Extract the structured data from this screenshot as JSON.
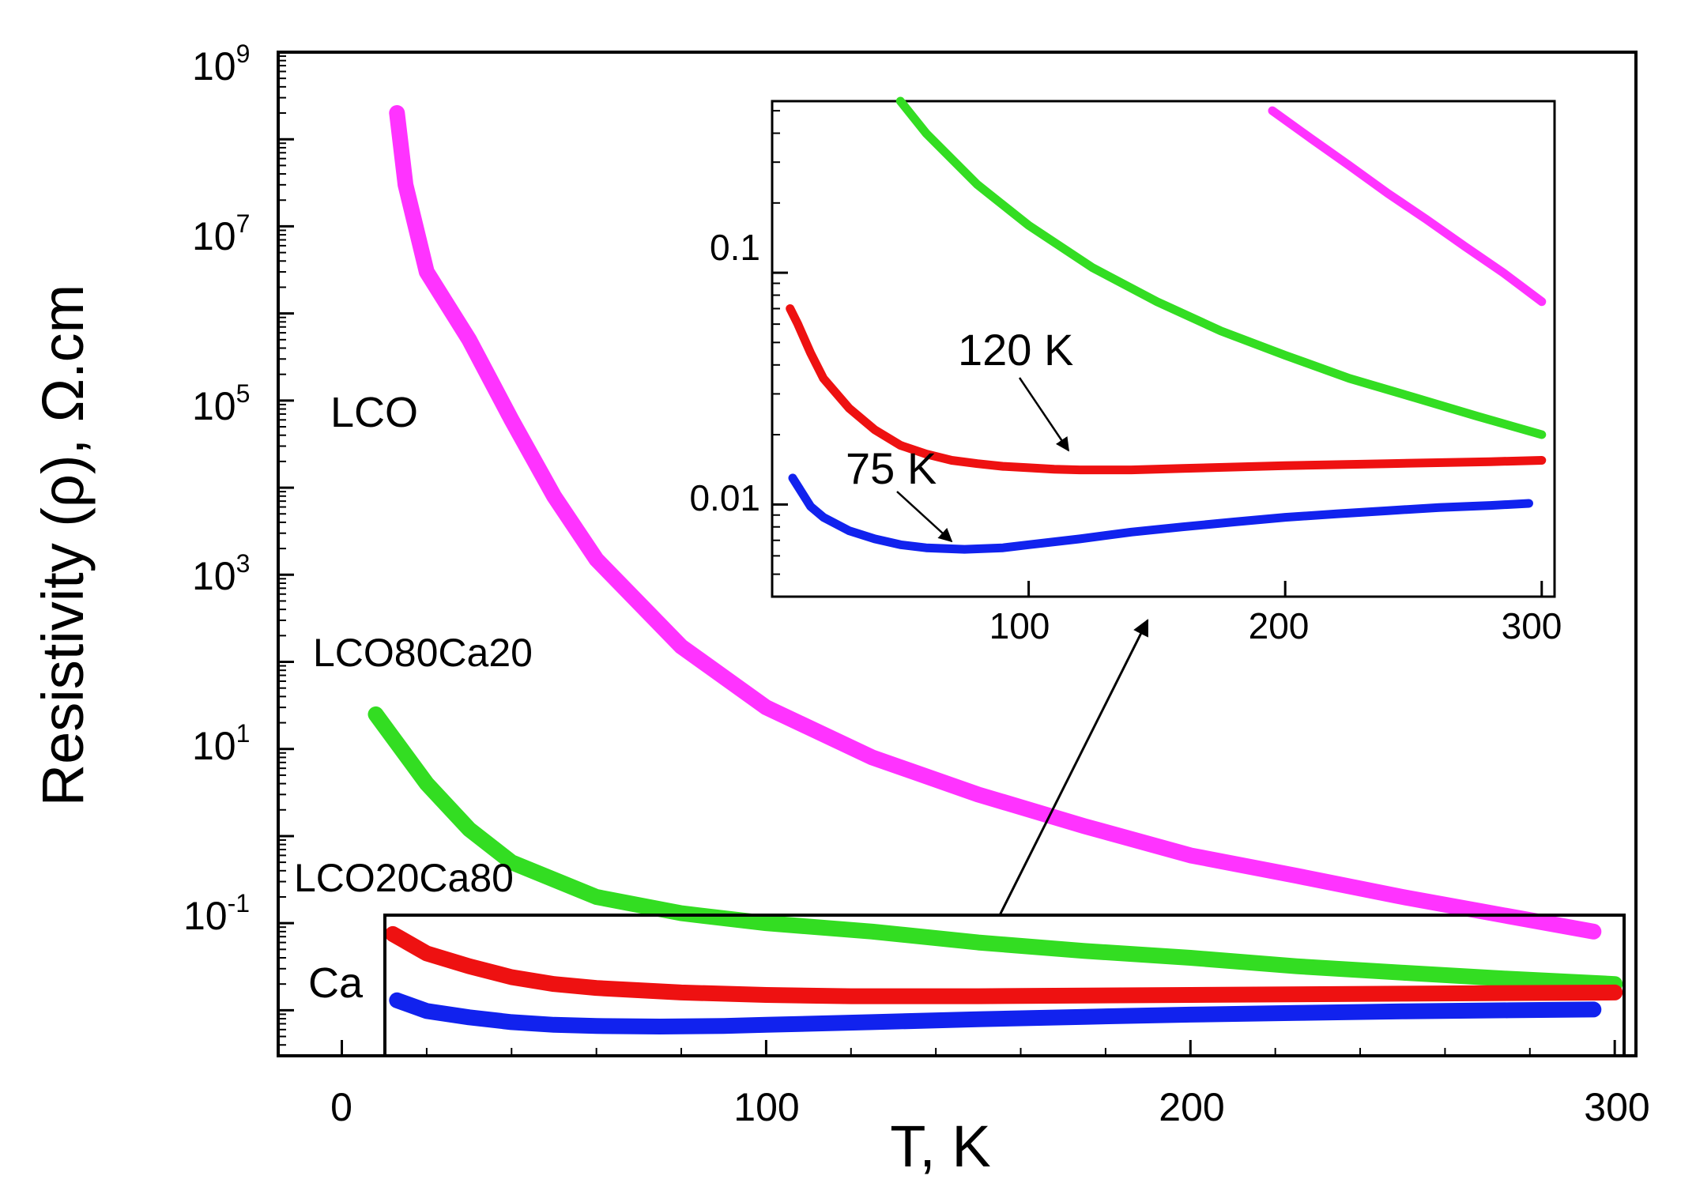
{
  "chart_data": [
    {
      "name": "main",
      "type": "scatter",
      "xlabel": "T, K",
      "ylabel": "Resistivity (ρ), Ω.cm",
      "yscale": "log",
      "xlim": [
        -15,
        305
      ],
      "ylim": [
        0.003,
        1000000000
      ],
      "xticks": [
        0,
        100,
        200,
        300
      ],
      "xtick_labels": [
        "0",
        "100",
        "200",
        "300"
      ],
      "yticks": [
        0.1,
        10,
        1000,
        100000,
        10000000,
        1000000000
      ],
      "ytick_labels": [
        {
          "base": "10",
          "exp": "-1"
        },
        {
          "base": "10",
          "exp": "1"
        },
        {
          "base": "10",
          "exp": "3"
        },
        {
          "base": "10",
          "exp": "5"
        },
        {
          "base": "10",
          "exp": "7"
        },
        {
          "base": "10",
          "exp": "9"
        }
      ],
      "series": [
        {
          "name": "LCO",
          "label": "LCO",
          "color": "#ff33ff",
          "x": [
            13,
            15,
            20,
            30,
            40,
            50,
            60,
            80,
            100,
            125,
            150,
            175,
            200,
            225,
            250,
            275,
            295
          ],
          "y": [
            200000000,
            30000000,
            3000000,
            500000,
            60000,
            8000,
            1500,
            150,
            30,
            8,
            3,
            1.3,
            0.6,
            0.35,
            0.2,
            0.12,
            0.08
          ]
        },
        {
          "name": "LCO80Ca20",
          "label": "LCO80Ca20",
          "color": "#33dd22",
          "x": [
            8,
            20,
            30,
            40,
            60,
            80,
            100,
            125,
            150,
            175,
            200,
            225,
            250,
            275,
            300
          ],
          "y": [
            25,
            4,
            1.2,
            0.5,
            0.2,
            0.13,
            0.1,
            0.08,
            0.06,
            0.048,
            0.04,
            0.032,
            0.027,
            0.023,
            0.02
          ]
        },
        {
          "name": "LCO20Ca80",
          "label": "LCO20Ca80",
          "color": "#ee1111",
          "x": [
            12,
            20,
            30,
            40,
            50,
            60,
            80,
            100,
            120,
            150,
            200,
            250,
            300
          ],
          "y": [
            0.075,
            0.045,
            0.032,
            0.024,
            0.02,
            0.018,
            0.016,
            0.015,
            0.0145,
            0.0145,
            0.015,
            0.0155,
            0.016
          ]
        },
        {
          "name": "Ca",
          "label": "Ca",
          "color": "#1122ee",
          "x": [
            13,
            20,
            30,
            40,
            50,
            60,
            75,
            90,
            100,
            125,
            150,
            175,
            200,
            225,
            250,
            275,
            295
          ],
          "y": [
            0.013,
            0.0098,
            0.0083,
            0.0073,
            0.0068,
            0.0066,
            0.0065,
            0.0066,
            0.0068,
            0.0073,
            0.0079,
            0.0084,
            0.0089,
            0.0093,
            0.0097,
            0.01,
            0.0102
          ]
        }
      ]
    },
    {
      "name": "inset",
      "type": "scatter",
      "yscale": "log",
      "xlim": [
        0,
        305
      ],
      "ylim": [
        0.004,
        0.55
      ],
      "xticks": [
        100,
        200,
        300
      ],
      "xtick_labels": [
        "100",
        "200",
        "300"
      ],
      "yticks": [
        0.01,
        0.1
      ],
      "ytick_labels": [
        "0.01",
        "0.1"
      ],
      "series": [
        {
          "name": "LCO",
          "color": "#ff33ff",
          "x": [
            195,
            210,
            225,
            240,
            255,
            270,
            285,
            300
          ],
          "y": [
            0.5,
            0.38,
            0.29,
            0.22,
            0.17,
            0.13,
            0.1,
            0.075
          ]
        },
        {
          "name": "LCO80Ca20",
          "color": "#33dd22",
          "x": [
            50,
            60,
            80,
            100,
            125,
            150,
            175,
            200,
            225,
            250,
            275,
            300
          ],
          "y": [
            0.55,
            0.4,
            0.24,
            0.16,
            0.105,
            0.075,
            0.056,
            0.044,
            0.035,
            0.029,
            0.024,
            0.02
          ]
        },
        {
          "name": "LCO20Ca80",
          "color": "#ee1111",
          "x": [
            7,
            10,
            15,
            20,
            30,
            40,
            50,
            60,
            70,
            80,
            90,
            100,
            110,
            120,
            140,
            160,
            180,
            200,
            240,
            280,
            300
          ],
          "y": [
            0.07,
            0.06,
            0.045,
            0.035,
            0.026,
            0.021,
            0.018,
            0.0165,
            0.0155,
            0.015,
            0.0146,
            0.0144,
            0.0142,
            0.0141,
            0.0141,
            0.0143,
            0.0145,
            0.0147,
            0.015,
            0.0153,
            0.0155
          ]
        },
        {
          "name": "Ca",
          "color": "#1122ee",
          "x": [
            8,
            15,
            20,
            30,
            40,
            50,
            60,
            75,
            90,
            100,
            120,
            140,
            160,
            180,
            200,
            220,
            240,
            260,
            280,
            295
          ],
          "y": [
            0.013,
            0.0098,
            0.0088,
            0.0077,
            0.0071,
            0.0067,
            0.0065,
            0.0064,
            0.0065,
            0.0067,
            0.0071,
            0.0076,
            0.008,
            0.0084,
            0.0088,
            0.0091,
            0.0094,
            0.0097,
            0.0099,
            0.0101
          ]
        }
      ],
      "annotations": [
        {
          "text": "120 K",
          "target_x": 120,
          "target_y": 0.0142
        },
        {
          "text": "75 K",
          "target_x": 75,
          "target_y": 0.0064
        }
      ]
    }
  ]
}
